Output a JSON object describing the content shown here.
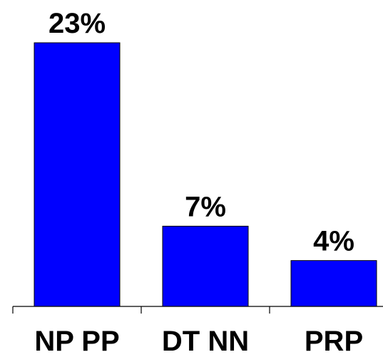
{
  "chart_data": {
    "type": "bar",
    "categories": [
      "NP PP",
      "DT NN",
      "PRP"
    ],
    "values": [
      23,
      7,
      4
    ],
    "data_labels": [
      "23%",
      "7%",
      "4%"
    ],
    "title": "",
    "xlabel": "",
    "ylabel": "",
    "ylim": [
      0,
      25
    ],
    "grid": false,
    "legend": "none",
    "colors": {
      "bar": "#0000ff",
      "outline": "#000000",
      "text": "#000000"
    }
  }
}
